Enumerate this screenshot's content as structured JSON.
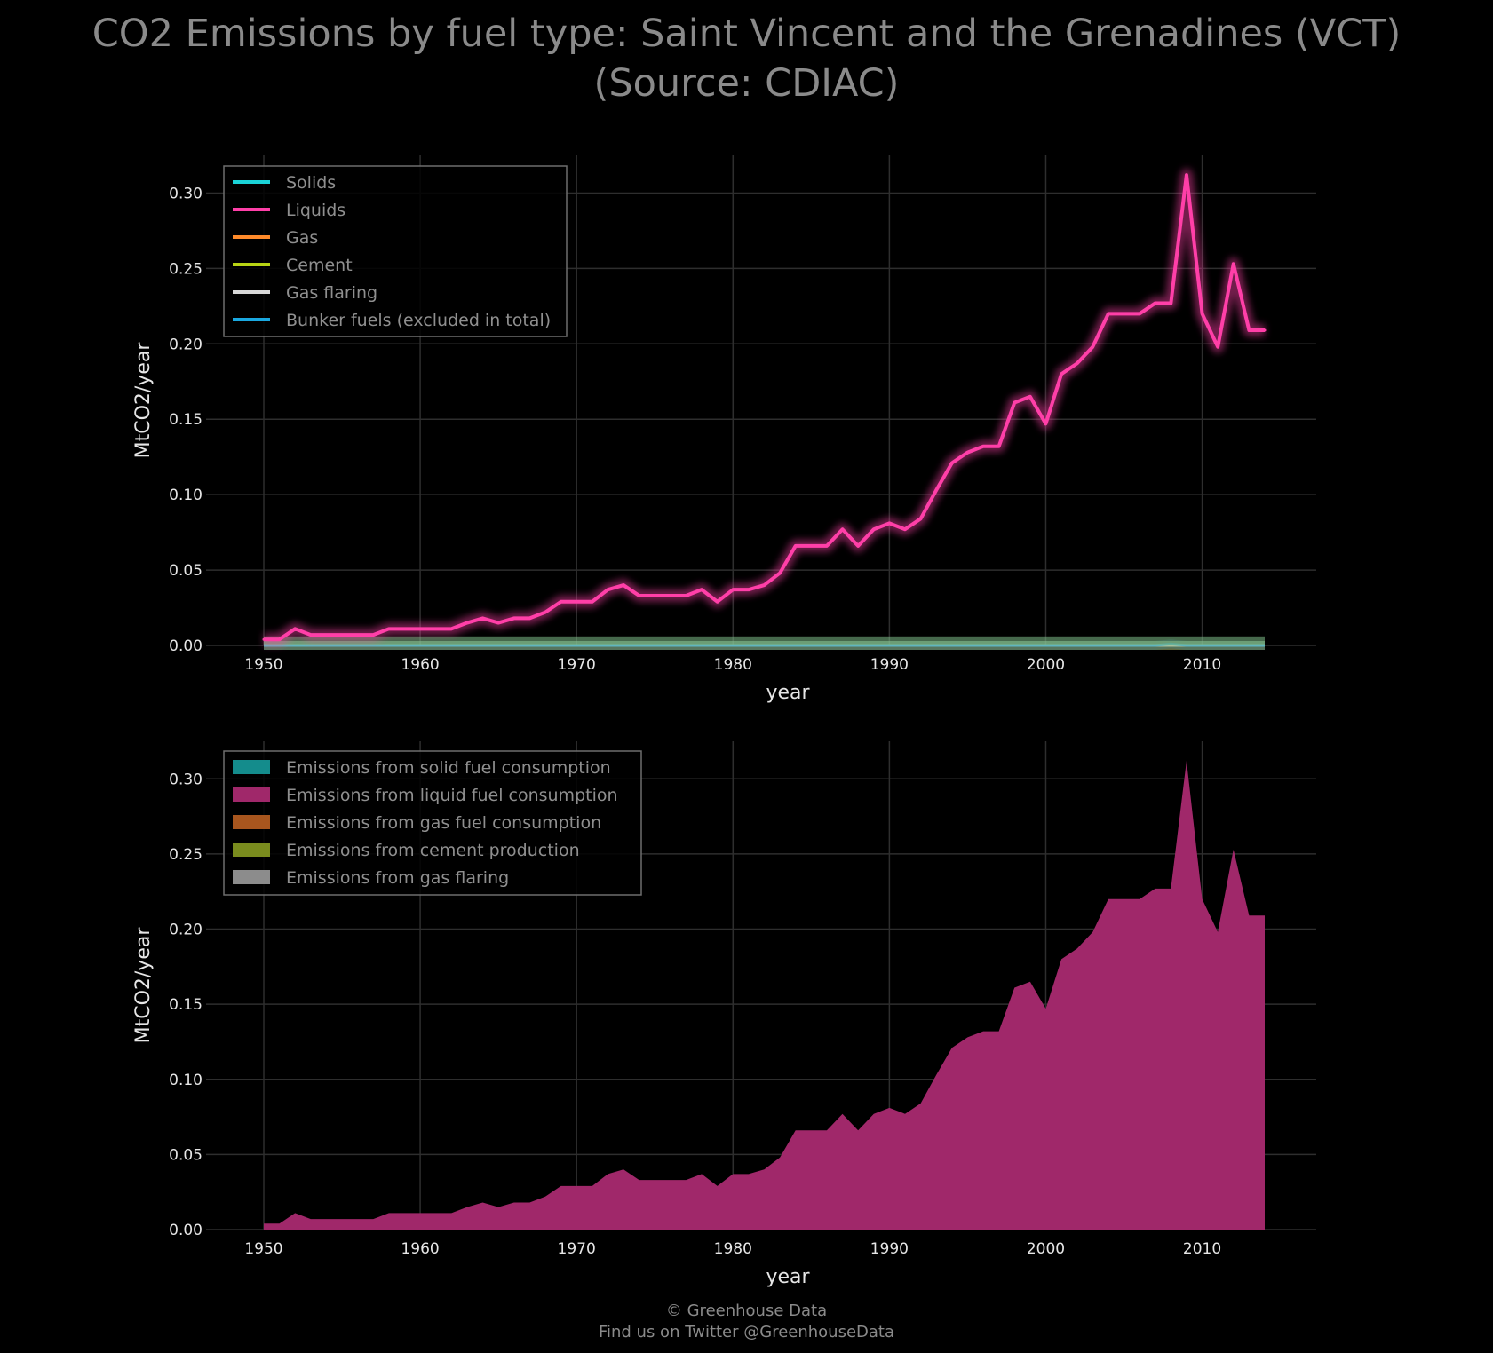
{
  "title_line1": "CO2 Emissions by fuel type: Saint Vincent and the Grenadines (VCT)",
  "title_line2": "(Source: CDIAC)",
  "footer_line1": "© Greenhouse Data",
  "footer_line2": "Find us on Twitter @GreenhouseData",
  "colors": {
    "background": "#000000",
    "solids": "#1ad3d8",
    "liquids": "#ff3fa8",
    "gas": "#ff8a2a",
    "cement": "#b8d414",
    "gas_flaring": "#d8d8d8",
    "bunker": "#1aa8e0",
    "fill_solid": "#148c8c",
    "fill_liquid": "#a0286a",
    "fill_gas": "#a8561e",
    "fill_cement": "#7a8c1e",
    "fill_flaring": "#8c8c8c"
  },
  "chart_data": [
    {
      "type": "line",
      "xlabel": "year",
      "ylabel": "MtCO2/year",
      "xlim": [
        1950,
        2014
      ],
      "ylim": [
        0,
        0.325
      ],
      "xticks": [
        "1950",
        "1960",
        "1970",
        "1980",
        "1990",
        "2000",
        "2010"
      ],
      "yticks": [
        "0.00",
        "0.05",
        "0.10",
        "0.15",
        "0.20",
        "0.25",
        "0.30"
      ],
      "grid": true,
      "legend_position": "top-left",
      "x": [
        1950,
        1951,
        1952,
        1953,
        1954,
        1955,
        1956,
        1957,
        1958,
        1959,
        1960,
        1961,
        1962,
        1963,
        1964,
        1965,
        1966,
        1967,
        1968,
        1969,
        1970,
        1971,
        1972,
        1973,
        1974,
        1975,
        1976,
        1977,
        1978,
        1979,
        1980,
        1981,
        1982,
        1983,
        1984,
        1985,
        1986,
        1987,
        1988,
        1989,
        1990,
        1991,
        1992,
        1993,
        1994,
        1995,
        1996,
        1997,
        1998,
        1999,
        2000,
        2001,
        2002,
        2003,
        2004,
        2005,
        2006,
        2007,
        2008,
        2009,
        2010,
        2011,
        2012,
        2013,
        2014
      ],
      "series": [
        {
          "name": "Solids",
          "values": [
            0,
            0,
            0,
            0,
            0,
            0,
            0,
            0,
            0,
            0,
            0,
            0,
            0,
            0,
            0,
            0,
            0,
            0,
            0,
            0,
            0,
            0,
            0,
            0,
            0,
            0,
            0,
            0,
            0,
            0,
            0,
            0,
            0,
            0,
            0,
            0,
            0,
            0,
            0,
            0,
            0,
            0,
            0,
            0,
            0,
            0,
            0,
            0,
            0,
            0,
            0,
            0,
            0,
            0,
            0,
            0,
            0,
            0,
            0,
            0,
            0,
            0,
            0,
            0,
            0
          ]
        },
        {
          "name": "Liquids",
          "values": [
            0.004,
            0.004,
            0.011,
            0.007,
            0.007,
            0.007,
            0.007,
            0.007,
            0.011,
            0.011,
            0.011,
            0.011,
            0.011,
            0.015,
            0.018,
            0.015,
            0.018,
            0.018,
            0.022,
            0.029,
            0.029,
            0.029,
            0.037,
            0.04,
            0.033,
            0.033,
            0.033,
            0.033,
            0.037,
            0.029,
            0.037,
            0.037,
            0.04,
            0.048,
            0.066,
            0.066,
            0.066,
            0.077,
            0.066,
            0.077,
            0.081,
            0.077,
            0.084,
            0.103,
            0.121,
            0.128,
            0.132,
            0.132,
            0.161,
            0.165,
            0.147,
            0.18,
            0.187,
            0.198,
            0.22,
            0.22,
            0.22,
            0.227,
            0.227,
            0.312,
            0.22,
            0.198,
            0.253,
            0.209,
            0.209
          ]
        },
        {
          "name": "Gas",
          "values": [
            0,
            0,
            0,
            0,
            0,
            0,
            0,
            0,
            0,
            0,
            0,
            0,
            0,
            0,
            0,
            0,
            0,
            0,
            0,
            0,
            0,
            0,
            0,
            0,
            0,
            0,
            0,
            0,
            0,
            0,
            0,
            0,
            0,
            0,
            0,
            0,
            0,
            0,
            0,
            0,
            0,
            0,
            0,
            0,
            0,
            0,
            0,
            0,
            0,
            0,
            0,
            0,
            0,
            0,
            0,
            0,
            0,
            0,
            0,
            0,
            0,
            0,
            0,
            0,
            0
          ]
        },
        {
          "name": "Cement",
          "values": [
            0,
            0,
            0,
            0,
            0,
            0,
            0,
            0,
            0,
            0,
            0,
            0,
            0,
            0,
            0,
            0,
            0,
            0,
            0,
            0,
            0,
            0,
            0,
            0,
            0,
            0,
            0,
            0,
            0,
            0,
            0,
            0,
            0,
            0,
            0,
            0,
            0,
            0,
            0,
            0,
            0,
            0,
            0,
            0,
            0,
            0,
            0,
            0,
            0,
            0,
            0,
            0,
            0,
            0,
            0,
            0,
            0,
            0,
            0,
            0,
            0,
            0,
            0,
            0,
            0
          ]
        },
        {
          "name": "Gas flaring",
          "values": [
            0,
            0,
            0,
            0,
            0,
            0,
            0,
            0,
            0,
            0,
            0,
            0,
            0,
            0,
            0,
            0,
            0,
            0,
            0,
            0,
            0,
            0,
            0,
            0,
            0,
            0,
            0,
            0,
            0,
            0,
            0,
            0,
            0,
            0,
            0,
            0,
            0,
            0,
            0,
            0,
            0,
            0,
            0,
            0,
            0,
            0,
            0,
            0,
            0,
            0,
            0,
            0,
            0,
            0,
            0,
            0,
            0,
            0,
            0,
            0,
            0,
            0,
            0,
            0,
            0
          ]
        },
        {
          "name": "Bunker fuels (excluded in total)",
          "values": [
            0,
            0,
            0,
            0,
            0,
            0,
            0,
            0,
            0,
            0,
            0,
            0,
            0,
            0,
            0,
            0,
            0,
            0,
            0,
            0,
            0,
            0,
            0,
            0,
            0,
            0,
            0,
            0,
            0,
            0,
            0,
            0,
            0,
            0,
            0,
            0,
            0,
            0,
            0,
            0,
            0,
            0,
            0,
            0,
            0,
            0,
            0,
            0,
            0,
            0,
            0,
            0,
            0,
            0,
            0,
            0,
            0,
            0,
            0.001,
            0,
            0,
            0,
            0,
            0,
            0
          ]
        }
      ]
    },
    {
      "type": "area",
      "xlabel": "year",
      "ylabel": "MtCO2/year",
      "xlim": [
        1950,
        2014
      ],
      "ylim": [
        0,
        0.325
      ],
      "xticks": [
        "1950",
        "1960",
        "1970",
        "1980",
        "1990",
        "2000",
        "2010"
      ],
      "yticks": [
        "0.00",
        "0.05",
        "0.10",
        "0.15",
        "0.20",
        "0.25",
        "0.30"
      ],
      "grid": true,
      "stacked": true,
      "legend_position": "top-left",
      "x": [
        1950,
        1951,
        1952,
        1953,
        1954,
        1955,
        1956,
        1957,
        1958,
        1959,
        1960,
        1961,
        1962,
        1963,
        1964,
        1965,
        1966,
        1967,
        1968,
        1969,
        1970,
        1971,
        1972,
        1973,
        1974,
        1975,
        1976,
        1977,
        1978,
        1979,
        1980,
        1981,
        1982,
        1983,
        1984,
        1985,
        1986,
        1987,
        1988,
        1989,
        1990,
        1991,
        1992,
        1993,
        1994,
        1995,
        1996,
        1997,
        1998,
        1999,
        2000,
        2001,
        2002,
        2003,
        2004,
        2005,
        2006,
        2007,
        2008,
        2009,
        2010,
        2011,
        2012,
        2013,
        2014
      ],
      "series": [
        {
          "name": "Emissions from solid fuel consumption",
          "values": [
            0,
            0,
            0,
            0,
            0,
            0,
            0,
            0,
            0,
            0,
            0,
            0,
            0,
            0,
            0,
            0,
            0,
            0,
            0,
            0,
            0,
            0,
            0,
            0,
            0,
            0,
            0,
            0,
            0,
            0,
            0,
            0,
            0,
            0,
            0,
            0,
            0,
            0,
            0,
            0,
            0,
            0,
            0,
            0,
            0,
            0,
            0,
            0,
            0,
            0,
            0,
            0,
            0,
            0,
            0,
            0,
            0,
            0,
            0,
            0,
            0,
            0,
            0,
            0,
            0
          ]
        },
        {
          "name": "Emissions from liquid fuel consumption",
          "values": [
            0.004,
            0.004,
            0.011,
            0.007,
            0.007,
            0.007,
            0.007,
            0.007,
            0.011,
            0.011,
            0.011,
            0.011,
            0.011,
            0.015,
            0.018,
            0.015,
            0.018,
            0.018,
            0.022,
            0.029,
            0.029,
            0.029,
            0.037,
            0.04,
            0.033,
            0.033,
            0.033,
            0.033,
            0.037,
            0.029,
            0.037,
            0.037,
            0.04,
            0.048,
            0.066,
            0.066,
            0.066,
            0.077,
            0.066,
            0.077,
            0.081,
            0.077,
            0.084,
            0.103,
            0.121,
            0.128,
            0.132,
            0.132,
            0.161,
            0.165,
            0.147,
            0.18,
            0.187,
            0.198,
            0.22,
            0.22,
            0.22,
            0.227,
            0.227,
            0.312,
            0.22,
            0.198,
            0.253,
            0.209,
            0.209
          ]
        },
        {
          "name": "Emissions from gas fuel consumption",
          "values": [
            0,
            0,
            0,
            0,
            0,
            0,
            0,
            0,
            0,
            0,
            0,
            0,
            0,
            0,
            0,
            0,
            0,
            0,
            0,
            0,
            0,
            0,
            0,
            0,
            0,
            0,
            0,
            0,
            0,
            0,
            0,
            0,
            0,
            0,
            0,
            0,
            0,
            0,
            0,
            0,
            0,
            0,
            0,
            0,
            0,
            0,
            0,
            0,
            0,
            0,
            0,
            0,
            0,
            0,
            0,
            0,
            0,
            0,
            0,
            0,
            0,
            0,
            0,
            0,
            0
          ]
        },
        {
          "name": "Emissions from cement production",
          "values": [
            0,
            0,
            0,
            0,
            0,
            0,
            0,
            0,
            0,
            0,
            0,
            0,
            0,
            0,
            0,
            0,
            0,
            0,
            0,
            0,
            0,
            0,
            0,
            0,
            0,
            0,
            0,
            0,
            0,
            0,
            0,
            0,
            0,
            0,
            0,
            0,
            0,
            0,
            0,
            0,
            0,
            0,
            0,
            0,
            0,
            0,
            0,
            0,
            0,
            0,
            0,
            0,
            0,
            0,
            0,
            0,
            0,
            0,
            0,
            0,
            0,
            0,
            0,
            0,
            0
          ]
        },
        {
          "name": "Emissions from gas flaring",
          "values": [
            0,
            0,
            0,
            0,
            0,
            0,
            0,
            0,
            0,
            0,
            0,
            0,
            0,
            0,
            0,
            0,
            0,
            0,
            0,
            0,
            0,
            0,
            0,
            0,
            0,
            0,
            0,
            0,
            0,
            0,
            0,
            0,
            0,
            0,
            0,
            0,
            0,
            0,
            0,
            0,
            0,
            0,
            0,
            0,
            0,
            0,
            0,
            0,
            0,
            0,
            0,
            0,
            0,
            0,
            0,
            0,
            0,
            0,
            0,
            0,
            0,
            0,
            0,
            0,
            0
          ]
        }
      ]
    }
  ]
}
